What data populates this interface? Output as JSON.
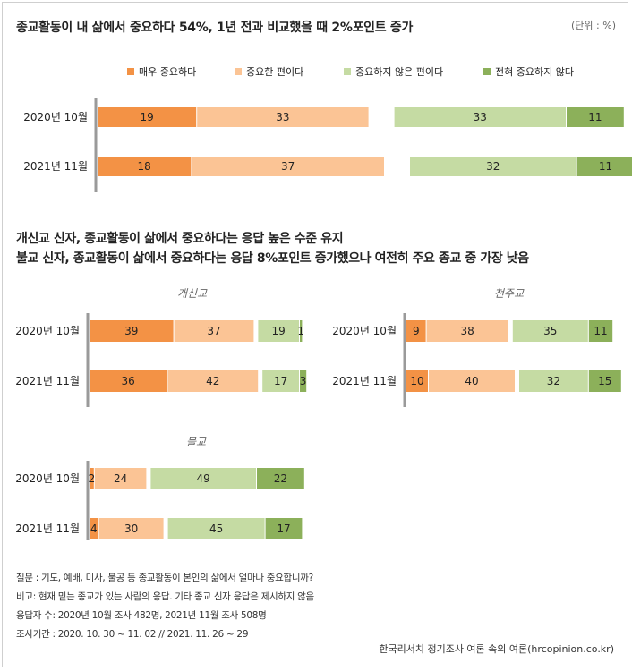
{
  "title_main": "종교활동이 내 삶에서 중요하다 54%, 1년 전과 비교했을 때 2%포인트 증가",
  "unit": "(단위 : %)",
  "legend": [
    {
      "label": "매우 중요하다",
      "color": "#f39245"
    },
    {
      "label": "중요한 편이다",
      "color": "#fbc495"
    },
    {
      "label": "중요하지 않은 편이다",
      "color": "#c5dba3"
    },
    {
      "label": "전혀 중요하지 않다",
      "color": "#8cb05a"
    }
  ],
  "title_sub_line1": "개신교 신자, 종교활동이 삶에서 중요하다는 응답 높은 수준 유지",
  "title_sub_line2": "불교 신자, 종교활동이 삶에서 중요하다는 응답 8%포인트 증가했으나 여전히 주요 종교 중 가장 낮음",
  "chart_data": [
    {
      "type": "bar",
      "title": "",
      "categories": [
        "2020년 10월",
        "2021년 11월"
      ],
      "series": [
        {
          "name": "매우 중요하다",
          "values": [
            19,
            18
          ]
        },
        {
          "name": "중요한 편이다",
          "values": [
            33,
            37
          ]
        },
        {
          "name": "중요하지 않은 편이다",
          "values": [
            33,
            32
          ]
        },
        {
          "name": "전혀 중요하지 않다",
          "values": [
            11,
            11
          ]
        }
      ]
    },
    {
      "type": "bar",
      "title": "개신교",
      "categories": [
        "2020년 10월",
        "2021년 11월"
      ],
      "series": [
        {
          "name": "매우 중요하다",
          "values": [
            39,
            36
          ]
        },
        {
          "name": "중요한 편이다",
          "values": [
            37,
            42
          ]
        },
        {
          "name": "중요하지 않은 편이다",
          "values": [
            19,
            17
          ]
        },
        {
          "name": "전혀 중요하지 않다",
          "values": [
            1,
            3
          ]
        }
      ]
    },
    {
      "type": "bar",
      "title": "천주교",
      "categories": [
        "2020년 10월",
        "2021년 11월"
      ],
      "series": [
        {
          "name": "매우 중요하다",
          "values": [
            9,
            10
          ]
        },
        {
          "name": "중요한 편이다",
          "values": [
            38,
            40
          ]
        },
        {
          "name": "중요하지 않은 편이다",
          "values": [
            35,
            32
          ]
        },
        {
          "name": "전혀 중요하지 않다",
          "values": [
            11,
            15
          ]
        }
      ]
    },
    {
      "type": "bar",
      "title": "불교",
      "categories": [
        "2020년 10월",
        "2021년 11월"
      ],
      "series": [
        {
          "name": "매우 중요하다",
          "values": [
            2,
            4
          ]
        },
        {
          "name": "중요한 편이다",
          "values": [
            24,
            30
          ]
        },
        {
          "name": "중요하지 않은 편이다",
          "values": [
            49,
            45
          ]
        },
        {
          "name": "전혀 중요하지 않다",
          "values": [
            22,
            17
          ]
        }
      ]
    }
  ],
  "footnotes": [
    "질문 : 기도, 예배, 미사, 불공 등 종교활동이 본인의 삶에서 얼마나 중요합니까?",
    "비고: 현재 믿는 종교가 있는 사람의 응답. 기타 종교 신자 응답은 제시하지 않음",
    "응답자 수: 2020년 10월 조사 482명, 2021년 11월 조사 508명",
    "조사기간 : 2020. 10. 30 ~ 11. 02 // 2021. 11. 26 ~ 29"
  ],
  "source": "한국리서치 정기조사 여론 속의 여론(hrcopinion.co.kr)"
}
